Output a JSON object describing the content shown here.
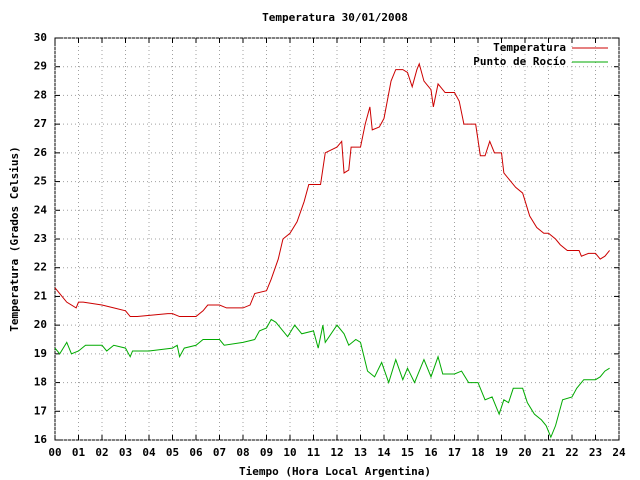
{
  "chart_data": {
    "type": "line",
    "title": "Temperatura 30/01/2008",
    "xlabel": "Tiempo (Hora Local Argentina)",
    "ylabel": "Temperatura (Grados Celsius)",
    "xlim": [
      0,
      24
    ],
    "ylim": [
      16,
      30
    ],
    "xticks": [
      {
        "value": 0,
        "label": "00"
      },
      {
        "value": 1,
        "label": "01"
      },
      {
        "value": 2,
        "label": "02"
      },
      {
        "value": 3,
        "label": "03"
      },
      {
        "value": 4,
        "label": "04"
      },
      {
        "value": 5,
        "label": "05"
      },
      {
        "value": 6,
        "label": "06"
      },
      {
        "value": 7,
        "label": "07"
      },
      {
        "value": 8,
        "label": "08"
      },
      {
        "value": 9,
        "label": "09"
      },
      10,
      11,
      12,
      13,
      14,
      15,
      16,
      17,
      18,
      19,
      20,
      21,
      22,
      23,
      24
    ],
    "yticks": [
      16,
      17,
      18,
      19,
      20,
      21,
      22,
      23,
      24,
      25,
      26,
      27,
      28,
      29,
      30
    ],
    "grid": true,
    "legend": "top-right",
    "series": [
      {
        "name": "Temperatura",
        "color": "#cc0000",
        "x": [
          0.0,
          0.2,
          0.5,
          0.9,
          1.0,
          1.2,
          2.0,
          2.5,
          3.0,
          3.2,
          3.5,
          4.8,
          5.0,
          5.3,
          6.0,
          6.3,
          6.5,
          7.0,
          7.3,
          8.0,
          8.3,
          8.5,
          9.0,
          9.2,
          9.5,
          9.7,
          10.0,
          10.3,
          10.6,
          10.8,
          11.0,
          11.3,
          11.5,
          12.0,
          12.2,
          12.3,
          12.5,
          12.6,
          13.0,
          13.2,
          13.4,
          13.5,
          13.8,
          14.0,
          14.3,
          14.5,
          14.8,
          15.0,
          15.2,
          15.4,
          15.5,
          15.7,
          16.0,
          16.1,
          16.3,
          16.6,
          17.0,
          17.2,
          17.4,
          17.9,
          18.1,
          18.3,
          18.5,
          18.7,
          19.0,
          19.1,
          19.4,
          19.6,
          19.9,
          20.2,
          20.5,
          20.8,
          21.0,
          21.3,
          21.5,
          21.8,
          22.3,
          22.4,
          22.7,
          23.0,
          23.2,
          23.4,
          23.6
        ],
        "values": [
          21.3,
          21.1,
          20.8,
          20.6,
          20.8,
          20.8,
          20.7,
          20.6,
          20.5,
          20.3,
          20.3,
          20.4,
          20.4,
          20.3,
          20.3,
          20.5,
          20.7,
          20.7,
          20.6,
          20.6,
          20.7,
          21.1,
          21.2,
          21.6,
          22.3,
          23.0,
          23.2,
          23.6,
          24.3,
          24.9,
          24.9,
          24.9,
          26.0,
          26.2,
          26.4,
          25.3,
          25.4,
          26.2,
          26.2,
          27.0,
          27.6,
          26.8,
          26.9,
          27.2,
          28.5,
          28.9,
          28.9,
          28.8,
          28.3,
          28.9,
          29.1,
          28.5,
          28.2,
          27.6,
          28.4,
          28.1,
          28.1,
          27.8,
          27.0,
          27.0,
          25.9,
          25.9,
          26.4,
          26.0,
          26.0,
          25.3,
          25.0,
          24.8,
          24.6,
          23.8,
          23.4,
          23.2,
          23.2,
          23.0,
          22.8,
          22.6,
          22.6,
          22.4,
          22.5,
          22.5,
          22.3,
          22.4,
          22.6
        ]
      },
      {
        "name": "Punto de Rocío",
        "color": "#00aa00",
        "x": [
          0.0,
          0.2,
          0.5,
          0.7,
          1.0,
          1.3,
          2.0,
          2.2,
          2.5,
          3.0,
          3.2,
          3.3,
          4.0,
          5.0,
          5.2,
          5.3,
          5.5,
          6.0,
          6.3,
          7.0,
          7.2,
          8.0,
          8.5,
          8.7,
          9.0,
          9.2,
          9.4,
          9.6,
          9.9,
          10.2,
          10.5,
          11.0,
          11.2,
          11.4,
          11.5,
          12.0,
          12.3,
          12.5,
          12.8,
          13.0,
          13.3,
          13.6,
          13.9,
          14.2,
          14.5,
          14.8,
          15.0,
          15.3,
          15.7,
          16.0,
          16.3,
          16.5,
          17.0,
          17.3,
          17.6,
          18.0,
          18.3,
          18.6,
          18.9,
          19.1,
          19.3,
          19.5,
          19.9,
          20.1,
          20.4,
          20.7,
          20.9,
          21.1,
          21.3,
          21.6,
          22.0,
          22.2,
          22.5,
          23.0,
          23.2,
          23.4,
          23.6
        ],
        "values": [
          19.2,
          19.0,
          19.4,
          19.0,
          19.1,
          19.3,
          19.3,
          19.1,
          19.3,
          19.2,
          18.9,
          19.1,
          19.1,
          19.2,
          19.3,
          18.9,
          19.2,
          19.3,
          19.5,
          19.5,
          19.3,
          19.4,
          19.5,
          19.8,
          19.9,
          20.2,
          20.1,
          19.9,
          19.6,
          20.0,
          19.7,
          19.8,
          19.2,
          20.0,
          19.4,
          20.0,
          19.7,
          19.3,
          19.5,
          19.4,
          18.4,
          18.2,
          18.7,
          18.0,
          18.8,
          18.1,
          18.5,
          18.0,
          18.8,
          18.2,
          18.9,
          18.3,
          18.3,
          18.4,
          18.0,
          18.0,
          17.4,
          17.5,
          16.9,
          17.4,
          17.3,
          17.8,
          17.8,
          17.3,
          16.9,
          16.7,
          16.5,
          16.1,
          16.5,
          17.4,
          17.5,
          17.8,
          18.1,
          18.1,
          18.2,
          18.4,
          18.5
        ]
      }
    ]
  }
}
